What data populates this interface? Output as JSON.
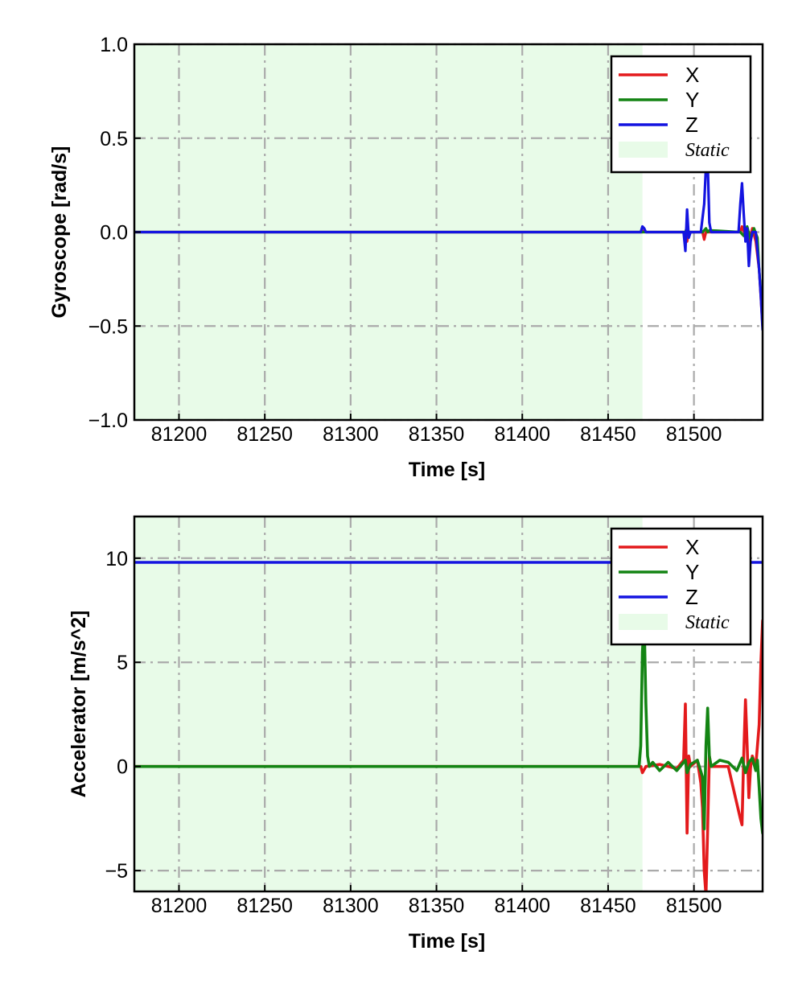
{
  "chart_data": [
    {
      "type": "line",
      "xlabel": "Time [s]",
      "ylabel": "Gyroscope [rad/s]",
      "xlim": [
        81174,
        81540
      ],
      "ylim": [
        -1.0,
        1.0
      ],
      "x_ticks": [
        81200,
        81250,
        81300,
        81350,
        81400,
        81450,
        81500
      ],
      "x_tick_labels": [
        "81200",
        "81250",
        "81300",
        "81350",
        "81400",
        "81450",
        "81500"
      ],
      "y_ticks": [
        -1.0,
        -0.5,
        0.0,
        0.5,
        1.0
      ],
      "y_tick_labels": [
        "−1.0",
        "−0.5",
        "0.0",
        "0.5",
        "1.0"
      ],
      "grid": true,
      "legend_position": "top-right",
      "static_region": {
        "label": "Static",
        "x_start": 81174,
        "x_end": 81470,
        "color": "#e8fbe8"
      },
      "series": [
        {
          "name": "X",
          "color": "#e31a1c",
          "x": [
            81174,
            81470,
            81471,
            81472,
            81495,
            81496,
            81497,
            81505,
            81506,
            81507,
            81527,
            81528,
            81530,
            81532,
            81534,
            81536,
            81538,
            81540
          ],
          "y": [
            0.0,
            0.0,
            0.01,
            0.0,
            0.0,
            -0.05,
            0.0,
            0.0,
            -0.04,
            0.0,
            0.0,
            0.03,
            -0.02,
            -0.06,
            0.02,
            -0.05,
            -0.2,
            -0.5
          ]
        },
        {
          "name": "Y",
          "color": "#138413",
          "x": [
            81174,
            81470,
            81495,
            81496,
            81497,
            81505,
            81507,
            81508,
            81509,
            81527,
            81529,
            81531,
            81533,
            81535,
            81537,
            81538,
            81540
          ],
          "y": [
            0.0,
            0.0,
            0.0,
            0.03,
            0.0,
            0.0,
            0.02,
            0.0,
            0.01,
            0.0,
            -0.02,
            0.03,
            -0.04,
            0.02,
            -0.03,
            -0.2,
            -0.45
          ]
        },
        {
          "name": "Z",
          "color": "#1414e0",
          "x": [
            81174,
            81469,
            81470,
            81471,
            81472,
            81494,
            81495,
            81496,
            81497,
            81498,
            81504,
            81506,
            81507,
            81508,
            81509,
            81510,
            81512,
            81526,
            81527,
            81528,
            81529,
            81530,
            81531,
            81532,
            81533,
            81534,
            81536,
            81538,
            81539,
            81540
          ],
          "y": [
            0.0,
            0.0,
            0.03,
            0.02,
            0.0,
            0.0,
            -0.1,
            0.12,
            -0.03,
            0.0,
            0.0,
            0.15,
            0.35,
            0.38,
            0.05,
            0.0,
            0.0,
            0.0,
            0.15,
            0.26,
            0.1,
            -0.05,
            0.02,
            -0.18,
            -0.05,
            0.0,
            0.0,
            -0.2,
            -0.35,
            -0.52
          ]
        }
      ]
    },
    {
      "type": "line",
      "xlabel": "Time [s]",
      "ylabel": "Accelerator [m/s^2]",
      "xlim": [
        81174,
        81540
      ],
      "ylim": [
        -6.0,
        12.0
      ],
      "x_ticks": [
        81200,
        81250,
        81300,
        81350,
        81400,
        81450,
        81500
      ],
      "x_tick_labels": [
        "81200",
        "81250",
        "81300",
        "81350",
        "81400",
        "81450",
        "81500"
      ],
      "y_ticks": [
        -5,
        0,
        5,
        10
      ],
      "y_tick_labels": [
        "−5",
        "0",
        "5",
        "10"
      ],
      "grid": true,
      "legend_position": "top-right",
      "static_region": {
        "label": "Static",
        "x_start": 81174,
        "x_end": 81470,
        "color": "#e8fbe8"
      },
      "series": [
        {
          "name": "X",
          "color": "#e31a1c",
          "x": [
            81174,
            81469,
            81470,
            81472,
            81480,
            81490,
            81494,
            81495,
            81496,
            81497,
            81498,
            81502,
            81504,
            81505,
            81506,
            81507,
            81508,
            81509,
            81510,
            81520,
            81527,
            81528,
            81529,
            81530,
            81531,
            81532,
            81533,
            81534,
            81536,
            81538,
            81539,
            81540
          ],
          "y": [
            0.0,
            0.0,
            -0.3,
            0.0,
            0.1,
            -0.1,
            0.3,
            3.0,
            -3.2,
            0.5,
            0.0,
            0.3,
            -0.8,
            -2.0,
            -5.0,
            -6.2,
            -3.0,
            0.5,
            0.0,
            0.0,
            -2.5,
            -2.8,
            0.5,
            3.2,
            1.0,
            -1.5,
            0.0,
            0.5,
            0.0,
            2.0,
            5.0,
            7.0
          ]
        },
        {
          "name": "Y",
          "color": "#138413",
          "x": [
            81174,
            81468,
            81469,
            81470,
            81471,
            81472,
            81473,
            81474,
            81476,
            81480,
            81485,
            81490,
            81495,
            81496,
            81498,
            81502,
            81505,
            81506,
            81507,
            81508,
            81509,
            81510,
            81515,
            81520,
            81525,
            81528,
            81530,
            81532,
            81534,
            81536,
            81537,
            81538,
            81539,
            81540
          ],
          "y": [
            0.0,
            0.0,
            1.0,
            5.5,
            7.0,
            3.0,
            0.5,
            0.0,
            0.2,
            -0.2,
            0.2,
            -0.2,
            0.3,
            -0.3,
            0.1,
            0.3,
            -0.5,
            -3.0,
            1.0,
            2.8,
            0.5,
            0.0,
            0.3,
            0.2,
            -0.2,
            0.4,
            -0.3,
            0.2,
            0.4,
            -0.2,
            0.3,
            -1.0,
            -2.5,
            -3.2
          ]
        },
        {
          "name": "Z",
          "color": "#1414e0",
          "x": [
            81174,
            81462,
            81463,
            81530,
            81531,
            81540
          ],
          "y": [
            9.8,
            9.8,
            9.9,
            9.9,
            9.8,
            9.8
          ]
        }
      ]
    }
  ]
}
